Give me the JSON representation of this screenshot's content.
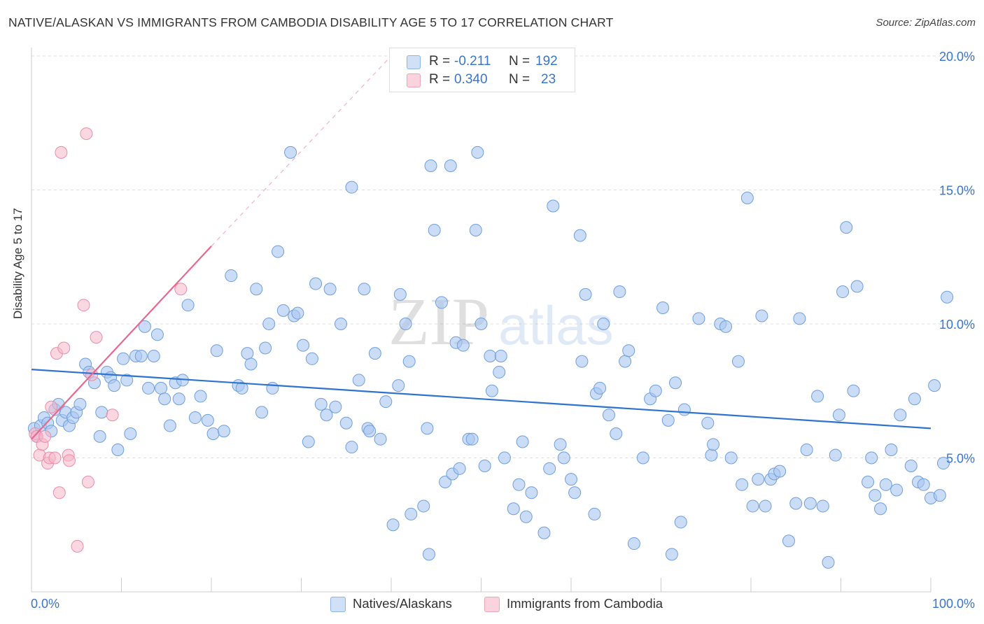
{
  "header": {
    "title": "NATIVE/ALASKAN VS IMMIGRANTS FROM CAMBODIA DISABILITY AGE 5 TO 17 CORRELATION CHART",
    "source": "Source: ZipAtlas.com"
  },
  "watermark": {
    "zip": "ZIP",
    "atlas": "atlas"
  },
  "legend": {
    "series1": {
      "r_label": "R =",
      "r_value": "-0.211",
      "n_label": "N =",
      "n_value": "192",
      "color": "#a9c6f0"
    },
    "series2": {
      "r_label": "R =",
      "r_value": "0.340",
      "n_label": "N =",
      "n_value": "23",
      "color": "#f7b7c9"
    }
  },
  "bottom_legend": {
    "series1_label": "Natives/Alaskans",
    "series2_label": "Immigrants from Cambodia"
  },
  "colors": {
    "blue_point": "#a9c6f0",
    "blue_stroke": "#6f9fdc",
    "blue_line": "#2f73d0",
    "pink_point": "#f7b7c9",
    "pink_stroke": "#e88ea9",
    "pink_line": "#e8688f",
    "tick_text": "#3a76c8"
  },
  "chart_data": {
    "type": "scatter",
    "title": "NATIVE/ALASKAN VS IMMIGRANTS FROM CAMBODIA DISABILITY AGE 5 TO 17 CORRELATION CHART",
    "xlabel": "",
    "ylabel": "Disability Age 5 to 17",
    "xlim": [
      0,
      100
    ],
    "ylim": [
      0,
      20
    ],
    "x_tick_labels": [
      "0.0%",
      "100.0%"
    ],
    "y_ticks": [
      5,
      10,
      15,
      20
    ],
    "y_tick_labels": [
      "5.0%",
      "10.0%",
      "15.0%",
      "20.0%"
    ],
    "grid": true,
    "legend_position": "top-center",
    "series": [
      {
        "name": "Natives/Alaskans",
        "R": -0.211,
        "N": 192,
        "trend": {
          "x": [
            0,
            100
          ],
          "y": [
            8.3,
            6.1
          ]
        },
        "points": [
          [
            0.3,
            6.1
          ],
          [
            0.6,
            5.8
          ],
          [
            1.0,
            6.2
          ],
          [
            1.4,
            6.5
          ],
          [
            1.8,
            6.3
          ],
          [
            2.2,
            6.0
          ],
          [
            2.6,
            6.8
          ],
          [
            3.0,
            7.0
          ],
          [
            3.4,
            6.4
          ],
          [
            3.8,
            6.7
          ],
          [
            4.2,
            6.2
          ],
          [
            4.6,
            6.5
          ],
          [
            5.0,
            6.7
          ],
          [
            5.4,
            7.0
          ],
          [
            6.0,
            8.5
          ],
          [
            6.4,
            8.2
          ],
          [
            7.0,
            7.8
          ],
          [
            7.6,
            5.8
          ],
          [
            7.8,
            6.7
          ],
          [
            8.4,
            8.2
          ],
          [
            8.8,
            8.0
          ],
          [
            9.2,
            7.7
          ],
          [
            9.6,
            5.3
          ],
          [
            10.2,
            8.7
          ],
          [
            10.6,
            7.9
          ],
          [
            11.0,
            5.9
          ],
          [
            11.6,
            8.8
          ],
          [
            12.2,
            8.8
          ],
          [
            12.6,
            9.9
          ],
          [
            13.0,
            7.6
          ],
          [
            13.6,
            8.8
          ],
          [
            14.0,
            9.6
          ],
          [
            14.4,
            7.6
          ],
          [
            14.8,
            7.2
          ],
          [
            15.4,
            6.2
          ],
          [
            16.0,
            7.8
          ],
          [
            16.4,
            7.2
          ],
          [
            16.8,
            7.9
          ],
          [
            17.4,
            10.7
          ],
          [
            18.2,
            6.5
          ],
          [
            18.8,
            7.3
          ],
          [
            19.6,
            6.4
          ],
          [
            20.2,
            5.9
          ],
          [
            20.6,
            9.0
          ],
          [
            21.4,
            6.0
          ],
          [
            22.2,
            11.8
          ],
          [
            23.0,
            7.7
          ],
          [
            23.4,
            7.6
          ],
          [
            24.0,
            8.9
          ],
          [
            24.4,
            8.5
          ],
          [
            25.0,
            11.3
          ],
          [
            25.6,
            6.7
          ],
          [
            26.0,
            9.1
          ],
          [
            26.4,
            10.0
          ],
          [
            26.8,
            7.6
          ],
          [
            27.4,
            12.7
          ],
          [
            28.0,
            10.5
          ],
          [
            28.8,
            16.4
          ],
          [
            29.2,
            10.3
          ],
          [
            29.6,
            10.4
          ],
          [
            30.2,
            9.2
          ],
          [
            30.8,
            5.6
          ],
          [
            31.2,
            8.7
          ],
          [
            31.6,
            11.5
          ],
          [
            32.2,
            7.0
          ],
          [
            32.8,
            6.6
          ],
          [
            33.2,
            11.3
          ],
          [
            33.8,
            6.9
          ],
          [
            34.4,
            10.0
          ],
          [
            35.0,
            6.3
          ],
          [
            35.6,
            5.4
          ],
          [
            35.6,
            15.1
          ],
          [
            36.4,
            7.9
          ],
          [
            37.0,
            11.3
          ],
          [
            37.4,
            6.1
          ],
          [
            37.6,
            6.0
          ],
          [
            38.2,
            8.9
          ],
          [
            38.8,
            5.7
          ],
          [
            39.4,
            7.1
          ],
          [
            40.2,
            2.5
          ],
          [
            40.8,
            7.7
          ],
          [
            41.0,
            11.1
          ],
          [
            41.6,
            10.0
          ],
          [
            42.0,
            8.6
          ],
          [
            42.2,
            2.9
          ],
          [
            43.6,
            3.2
          ],
          [
            44.0,
            6.1
          ],
          [
            44.2,
            1.4
          ],
          [
            44.4,
            15.9
          ],
          [
            44.8,
            13.5
          ],
          [
            45.6,
            10.8
          ],
          [
            46.0,
            4.1
          ],
          [
            46.6,
            15.9
          ],
          [
            46.8,
            4.4
          ],
          [
            47.2,
            9.3
          ],
          [
            47.6,
            4.6
          ],
          [
            48.0,
            9.2
          ],
          [
            48.6,
            5.7
          ],
          [
            49.0,
            5.7
          ],
          [
            49.4,
            13.5
          ],
          [
            49.6,
            16.4
          ],
          [
            50.0,
            10.0
          ],
          [
            50.4,
            4.7
          ],
          [
            51.0,
            8.8
          ],
          [
            51.2,
            7.5
          ],
          [
            52.0,
            8.2
          ],
          [
            52.2,
            8.8
          ],
          [
            52.6,
            5.0
          ],
          [
            53.6,
            3.1
          ],
          [
            54.2,
            4.0
          ],
          [
            54.6,
            5.6
          ],
          [
            55.0,
            2.8
          ],
          [
            55.6,
            3.7
          ],
          [
            57.0,
            2.2
          ],
          [
            57.6,
            4.6
          ],
          [
            58.0,
            14.4
          ],
          [
            58.8,
            5.5
          ],
          [
            59.2,
            5.0
          ],
          [
            60.0,
            4.2
          ],
          [
            60.4,
            3.7
          ],
          [
            61.0,
            13.3
          ],
          [
            61.2,
            8.6
          ],
          [
            61.6,
            11.1
          ],
          [
            62.6,
            2.9
          ],
          [
            62.8,
            7.4
          ],
          [
            63.2,
            7.6
          ],
          [
            63.6,
            10.0
          ],
          [
            64.2,
            6.6
          ],
          [
            65.0,
            5.9
          ],
          [
            65.4,
            11.2
          ],
          [
            66.0,
            8.6
          ],
          [
            66.4,
            9.0
          ],
          [
            67.0,
            1.8
          ],
          [
            68.0,
            5.0
          ],
          [
            68.8,
            7.2
          ],
          [
            69.4,
            7.5
          ],
          [
            70.2,
            10.6
          ],
          [
            70.8,
            6.4
          ],
          [
            71.2,
            1.4
          ],
          [
            71.6,
            7.8
          ],
          [
            72.2,
            2.6
          ],
          [
            72.6,
            6.8
          ],
          [
            74.2,
            10.2
          ],
          [
            75.2,
            6.3
          ],
          [
            75.6,
            5.1
          ],
          [
            75.8,
            5.5
          ],
          [
            76.6,
            10.0
          ],
          [
            77.2,
            9.9
          ],
          [
            77.8,
            5.0
          ],
          [
            78.6,
            8.6
          ],
          [
            79.0,
            4.0
          ],
          [
            79.6,
            14.7
          ],
          [
            80.2,
            3.2
          ],
          [
            80.8,
            4.2
          ],
          [
            81.2,
            10.3
          ],
          [
            81.6,
            3.2
          ],
          [
            82.2,
            4.2
          ],
          [
            82.6,
            4.4
          ],
          [
            83.2,
            4.5
          ],
          [
            84.2,
            1.9
          ],
          [
            85.0,
            3.3
          ],
          [
            85.4,
            10.2
          ],
          [
            86.2,
            5.3
          ],
          [
            86.6,
            3.3
          ],
          [
            87.4,
            7.3
          ],
          [
            88.0,
            3.2
          ],
          [
            88.6,
            1.1
          ],
          [
            89.4,
            5.1
          ],
          [
            89.8,
            6.6
          ],
          [
            90.2,
            11.2
          ],
          [
            90.6,
            13.6
          ],
          [
            91.4,
            7.5
          ],
          [
            91.8,
            11.4
          ],
          [
            93.0,
            4.1
          ],
          [
            93.4,
            5.0
          ],
          [
            93.8,
            3.6
          ],
          [
            94.4,
            3.1
          ],
          [
            95.0,
            4.0
          ],
          [
            95.6,
            5.3
          ],
          [
            96.2,
            3.8
          ],
          [
            96.6,
            6.6
          ],
          [
            97.8,
            4.7
          ],
          [
            98.2,
            7.2
          ],
          [
            98.6,
            4.1
          ],
          [
            99.2,
            4.0
          ],
          [
            100.0,
            3.5
          ],
          [
            100.4,
            7.7
          ],
          [
            101.0,
            3.6
          ],
          [
            101.4,
            4.8
          ],
          [
            101.8,
            11.0
          ]
        ]
      },
      {
        "name": "Immigrants from Cambodia",
        "R": 0.34,
        "N": 23,
        "trend": {
          "x": [
            0,
            20
          ],
          "y": [
            5.7,
            12.9
          ],
          "dashed_extension_to": [
            40,
            20
          ]
        },
        "points": [
          [
            0.4,
            5.9
          ],
          [
            0.6,
            5.8
          ],
          [
            0.9,
            5.1
          ],
          [
            1.2,
            5.5
          ],
          [
            1.5,
            5.8
          ],
          [
            1.8,
            4.8
          ],
          [
            2.0,
            5.0
          ],
          [
            2.2,
            6.9
          ],
          [
            2.6,
            5.0
          ],
          [
            2.8,
            8.9
          ],
          [
            3.1,
            3.7
          ],
          [
            3.3,
            16.4
          ],
          [
            3.6,
            9.1
          ],
          [
            4.1,
            5.1
          ],
          [
            4.2,
            4.9
          ],
          [
            5.1,
            1.7
          ],
          [
            5.8,
            10.7
          ],
          [
            6.1,
            17.1
          ],
          [
            6.3,
            4.1
          ],
          [
            6.7,
            8.1
          ],
          [
            7.2,
            9.5
          ],
          [
            9.0,
            6.6
          ],
          [
            16.6,
            11.3
          ]
        ]
      }
    ]
  }
}
